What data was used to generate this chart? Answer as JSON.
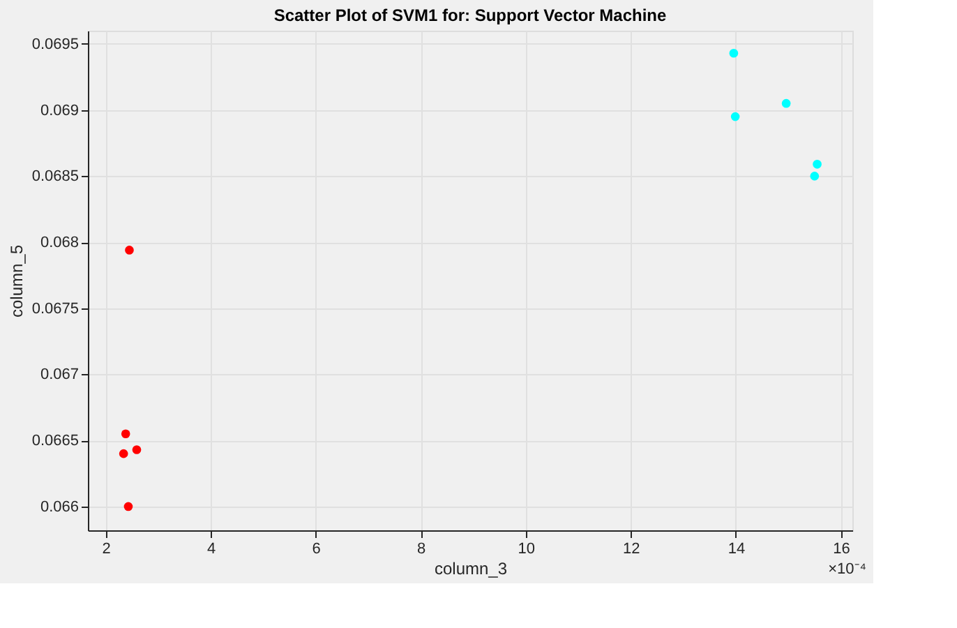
{
  "chart_data": {
    "type": "scatter",
    "title": "Scatter Plot of SVM1 for: Support Vector Machine",
    "xlabel": "column_3",
    "ylabel": "column_5",
    "series": [
      {
        "color": "#ff0000",
        "x": [
          2.45,
          2.38,
          2.34,
          2.59,
          2.43
        ],
        "values": [
          0.06794,
          0.06655,
          0.0664,
          0.06643,
          0.066
        ]
      },
      {
        "color": "#00ffff",
        "x": [
          13.96,
          13.99,
          14.96,
          15.55,
          15.5
        ],
        "values": [
          0.06943,
          0.06895,
          0.06905,
          0.06859,
          0.0685
        ]
      }
    ],
    "xlim": [
      1.66,
      16.22
    ],
    "ylim": [
      0.06582,
      0.0696
    ],
    "xticks": [
      2,
      4,
      6,
      8,
      10,
      12,
      14,
      16
    ],
    "yticks": [
      0.066,
      0.0665,
      0.067,
      0.0675,
      0.068,
      0.0685,
      0.069,
      0.0695
    ],
    "annotations": [
      "×10⁻⁴"
    ],
    "grid": true,
    "marker": "circle",
    "legend": false
  }
}
